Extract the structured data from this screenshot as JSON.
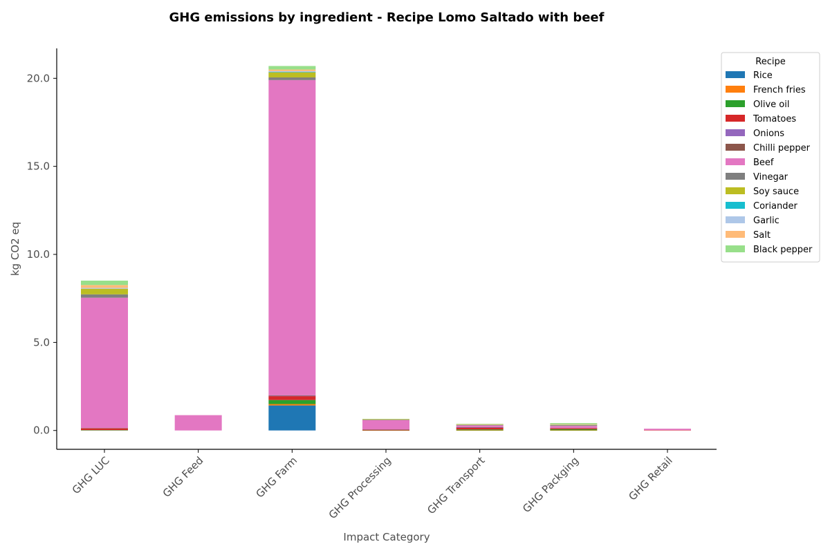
{
  "chart_data": {
    "type": "bar",
    "stacked": true,
    "title": "GHG emissions by ingredient - Recipe Lomo Saltado with beef",
    "xlabel": "Impact Category",
    "ylabel": "kg CO2 eq",
    "ylim": [
      -1.07,
      21.7
    ],
    "yticks": [
      0.0,
      5.0,
      10.0,
      15.0,
      20.0
    ],
    "ytick_labels": [
      "0.0",
      "5.0",
      "10.0",
      "15.0",
      "20.0"
    ],
    "grid": false,
    "legend_title": "Recipe",
    "legend_position": "top-right, outside plot",
    "categories": [
      "GHG LUC",
      "GHG Feed",
      "GHG Farm",
      "GHG Processing",
      "GHG Transport",
      "GHG Packging",
      "GHG Retail"
    ],
    "series": [
      {
        "name": "Rice",
        "color": "#1f77b4",
        "values": [
          0.0,
          0.0,
          1.42,
          0.0,
          0.0,
          0.0,
          0.0
        ]
      },
      {
        "name": "French fries",
        "color": "#ff7f0e",
        "values": [
          0.0,
          0.0,
          0.08,
          0.01,
          0.01,
          0.01,
          0.0
        ]
      },
      {
        "name": "Olive oil",
        "color": "#2ca02c",
        "values": [
          0.02,
          0.0,
          0.23,
          0.01,
          0.05,
          0.06,
          0.0
        ]
      },
      {
        "name": "Tomatoes",
        "color": "#d62728",
        "values": [
          0.1,
          0.0,
          0.22,
          0.01,
          0.1,
          0.05,
          0.02
        ]
      },
      {
        "name": "Onions",
        "color": "#9467bd",
        "values": [
          0.0,
          0.0,
          0.02,
          0.0,
          0.01,
          0.0,
          0.0
        ]
      },
      {
        "name": "Chilli pepper",
        "color": "#8c564b",
        "values": [
          0.02,
          0.0,
          0.03,
          0.02,
          0.02,
          0.02,
          0.0
        ]
      },
      {
        "name": "Beef",
        "color": "#e377c2",
        "values": [
          7.4,
          0.87,
          17.9,
          0.55,
          0.1,
          0.12,
          0.08
        ]
      },
      {
        "name": "Vinegar",
        "color": "#7f7f7f",
        "values": [
          0.19,
          0.0,
          0.15,
          0.01,
          0.02,
          0.04,
          0.0
        ]
      },
      {
        "name": "Soy sauce",
        "color": "#bcbd22",
        "values": [
          0.32,
          0.0,
          0.3,
          0.03,
          0.03,
          0.03,
          0.0
        ]
      },
      {
        "name": "Coriander",
        "color": "#17becf",
        "values": [
          0.0,
          0.0,
          0.01,
          0.0,
          0.0,
          0.0,
          0.0
        ]
      },
      {
        "name": "Garlic",
        "color": "#aec7e8",
        "values": [
          0.05,
          0.0,
          0.05,
          0.0,
          0.01,
          0.01,
          0.0
        ]
      },
      {
        "name": "Salt",
        "color": "#ffbb78",
        "values": [
          0.16,
          0.0,
          0.09,
          0.01,
          0.01,
          0.02,
          0.0
        ]
      },
      {
        "name": "Black pepper",
        "color": "#98df8a",
        "values": [
          0.25,
          0.0,
          0.2,
          0.01,
          0.02,
          0.06,
          0.0
        ]
      }
    ]
  }
}
